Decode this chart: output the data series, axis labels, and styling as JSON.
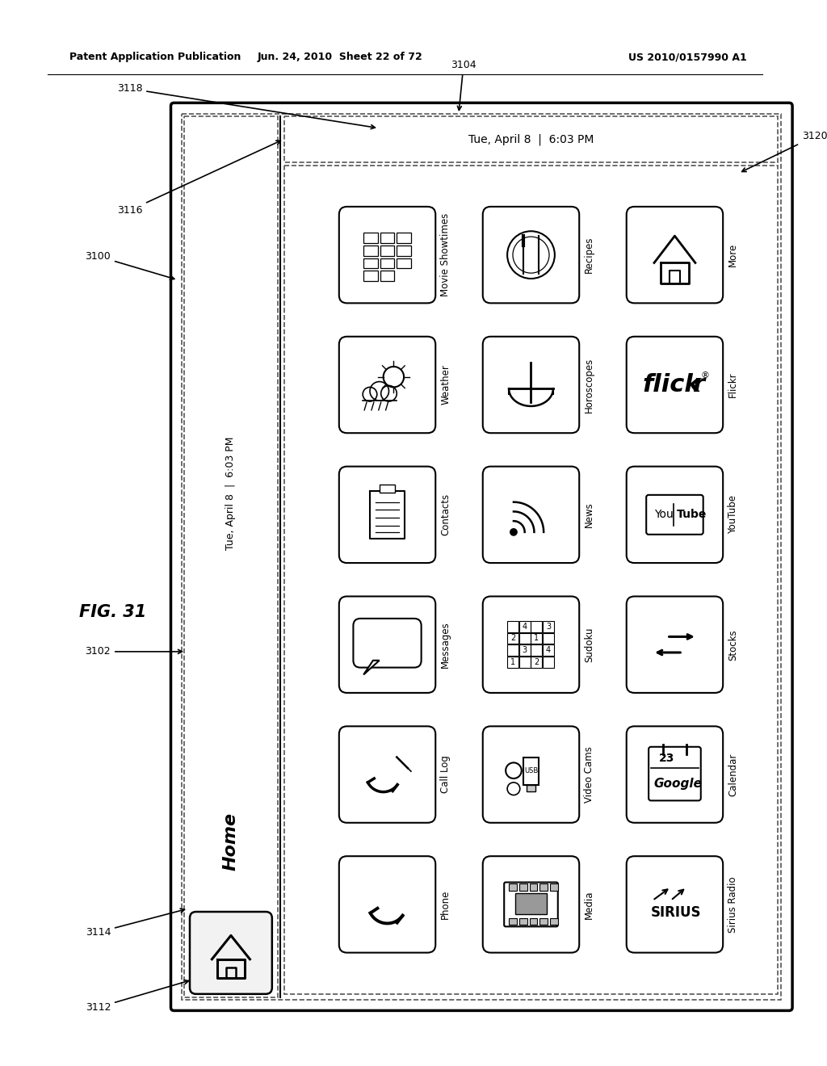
{
  "header_left": "Patent Application Publication",
  "header_mid": "Jun. 24, 2010  Sheet 22 of 72",
  "header_right": "US 2010/0157990 A1",
  "fig_label": "FIG. 31",
  "labels": [
    "3100",
    "3102",
    "3104",
    "3112",
    "3114",
    "3116",
    "3118",
    "3120"
  ],
  "sidebar_home_text": "Home",
  "status_text": "Tue, April 8  |  6:03 PM",
  "app_labels": [
    [
      "Movie Showtimes",
      "Recipes",
      "More"
    ],
    [
      "Weather",
      "Horoscopes",
      "Flickr"
    ],
    [
      "Contacts",
      "News",
      "YouTube"
    ],
    [
      "Messages",
      "Sudoku",
      "Stocks"
    ],
    [
      "Call Log",
      "Video Cams",
      "Calendar"
    ],
    [
      "Phone",
      "Media",
      "Sirius Radio"
    ]
  ],
  "icon_types": [
    [
      "movie",
      "recipes",
      "more"
    ],
    [
      "weather",
      "horoscopes",
      "flickr"
    ],
    [
      "contacts",
      "news",
      "youtube"
    ],
    [
      "messages",
      "sudoku",
      "stocks"
    ],
    [
      "calllog",
      "videocams",
      "calendar"
    ],
    [
      "phone",
      "media",
      "sirius"
    ]
  ]
}
